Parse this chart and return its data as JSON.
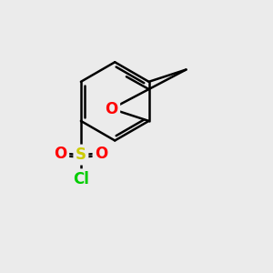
{
  "bg_color": "#ebebeb",
  "bond_color": "#000000",
  "bond_width": 1.8,
  "O_color": "#ff0000",
  "S_color": "#cccc00",
  "Cl_color": "#00cc00",
  "font_size_atom": 12,
  "fig_size": [
    3.0,
    3.0
  ],
  "dpi": 100,
  "xlim": [
    0,
    10
  ],
  "ylim": [
    0,
    10
  ]
}
